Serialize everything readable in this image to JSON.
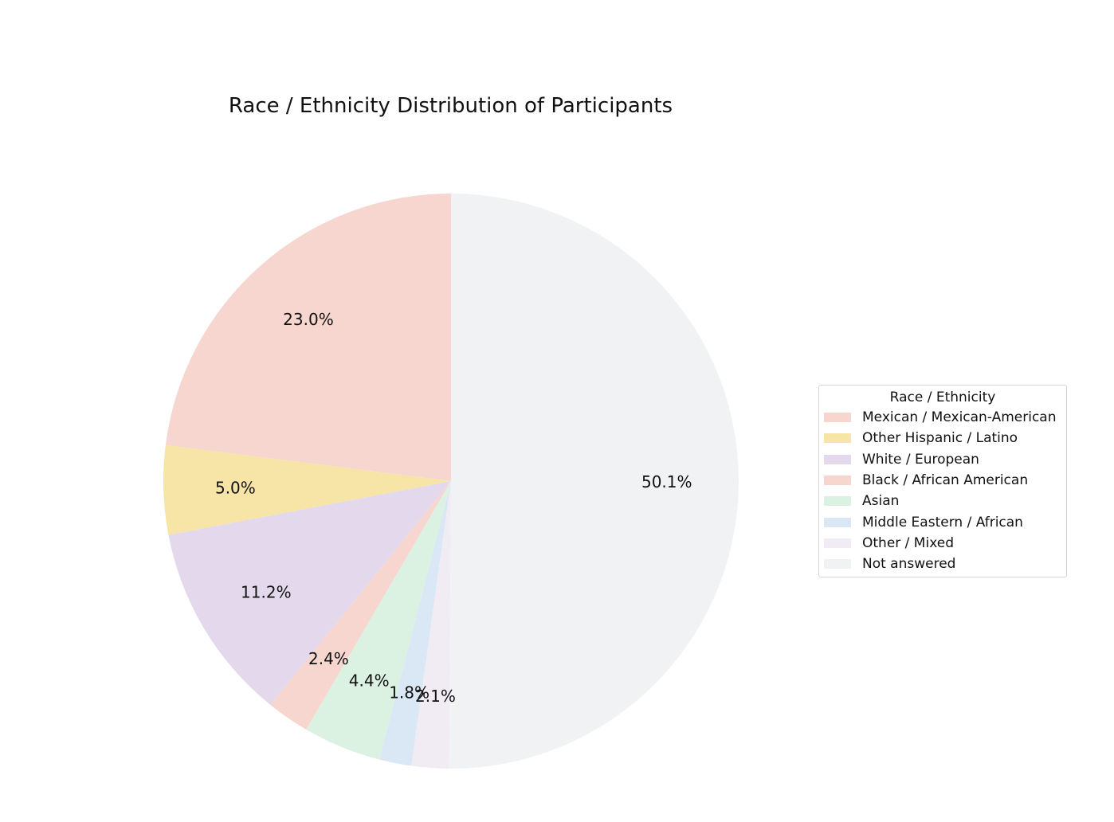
{
  "chart_data": {
    "type": "pie",
    "title": "Race / Ethnicity Distribution of Participants",
    "start_angle_deg": 90,
    "direction": "counterclockwise",
    "legend": {
      "title": "Race / Ethnicity",
      "placement": "right"
    },
    "slices": [
      {
        "label": "Mexican / Mexican-American",
        "value": 23.0,
        "pct_label": "23.0%",
        "color": "#f6d6cf"
      },
      {
        "label": "Other Hispanic / Latino",
        "value": 5.0,
        "pct_label": "5.0%",
        "color": "#f6e5a7"
      },
      {
        "label": "White / European",
        "value": 11.2,
        "pct_label": "11.2%",
        "color": "#e4d9ec"
      },
      {
        "label": "Black / African American",
        "value": 2.4,
        "pct_label": "2.4%",
        "color": "#f6d6cf"
      },
      {
        "label": "Asian",
        "value": 4.4,
        "pct_label": "4.4%",
        "color": "#dbf2e3"
      },
      {
        "label": "Middle Eastern / African",
        "value": 1.8,
        "pct_label": "1.8%",
        "color": "#dae7f4"
      },
      {
        "label": "Other / Mixed",
        "value": 2.1,
        "pct_label": "2.1%",
        "color": "#f1ebf3"
      },
      {
        "label": "Not answered",
        "value": 50.1,
        "pct_label": "50.1%",
        "color": "#f1f2f3"
      }
    ]
  }
}
